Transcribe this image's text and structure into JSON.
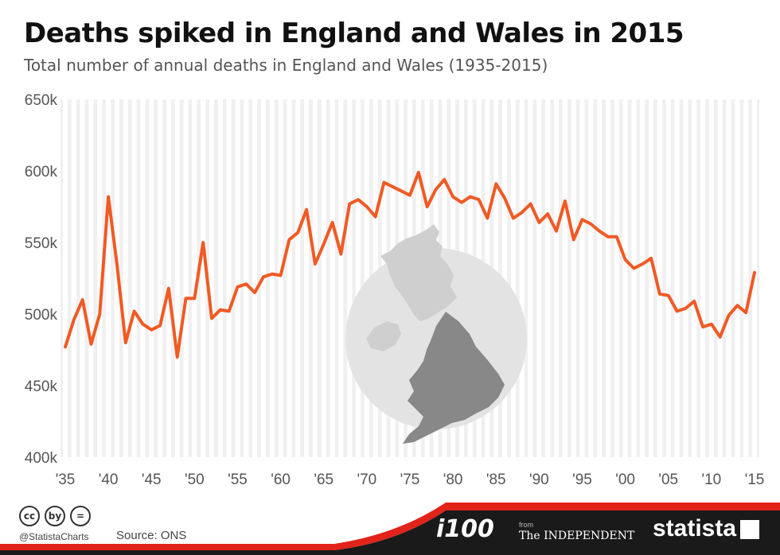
{
  "title": "Deaths spiked in England and Wales in 2015",
  "subtitle": "Total number of annual deaths in England and Wales (1935-2015)",
  "chart_data": {
    "type": "line",
    "title": "Deaths spiked in England and Wales in 2015",
    "subtitle": "Total number of annual deaths in England and Wales (1935-2015)",
    "ylim": [
      400000,
      650000
    ],
    "xlim": [
      1935,
      2015
    ],
    "y_ticks": [
      400000,
      450000,
      500000,
      550000,
      600000,
      650000
    ],
    "y_tick_labels": [
      "400k",
      "450k",
      "500k",
      "550k",
      "600k",
      "650k"
    ],
    "x_ticks": [
      1935,
      1940,
      1945,
      1950,
      1955,
      1960,
      1965,
      1970,
      1975,
      1980,
      1985,
      1990,
      1995,
      2000,
      2005,
      2010,
      2015
    ],
    "x_tick_labels": [
      "'35",
      "'40",
      "'45",
      "'50",
      "'55",
      "'60",
      "'65",
      "'70",
      "'75",
      "'80",
      "'85",
      "'90",
      "'95",
      "'00",
      "'05",
      "'10",
      "'15"
    ],
    "grid": "vertical stripes",
    "line_color": "#f05a24",
    "series": [
      {
        "x": [
          1935,
          1936,
          1937,
          1938,
          1939,
          1940,
          1941,
          1942,
          1943,
          1944,
          1945,
          1946,
          1947,
          1948,
          1949,
          1950,
          1951,
          1952,
          1953,
          1954,
          1955,
          1956,
          1957,
          1958,
          1959,
          1960,
          1961,
          1962,
          1963,
          1964,
          1965,
          1966,
          1967,
          1968,
          1969,
          1970,
          1971,
          1972,
          1973,
          1974,
          1975,
          1976,
          1977,
          1978,
          1979,
          1980,
          1981,
          1982,
          1983,
          1984,
          1985,
          1986,
          1987,
          1988,
          1989,
          1990,
          1991,
          1992,
          1993,
          1994,
          1995,
          1996,
          1997,
          1998,
          1999,
          2000,
          2001,
          2002,
          2003,
          2004,
          2005,
          2006,
          2007,
          2008,
          2009,
          2010,
          2011,
          2012,
          2013,
          2014,
          2015
        ],
        "values": [
          477000,
          496000,
          510000,
          479000,
          500000,
          582000,
          535000,
          480000,
          502000,
          493000,
          489000,
          492000,
          518000,
          470000,
          511000,
          511000,
          550000,
          497000,
          503000,
          502000,
          519000,
          521000,
          515000,
          526000,
          528000,
          527000,
          552000,
          557000,
          573000,
          535000,
          549000,
          564000,
          542000,
          577000,
          580000,
          575000,
          568000,
          592000,
          589000,
          586000,
          583000,
          599000,
          575000,
          587000,
          594000,
          582000,
          578000,
          582000,
          580000,
          567000,
          591000,
          581000,
          567000,
          571000,
          577000,
          564000,
          570000,
          558000,
          579000,
          552000,
          566000,
          563000,
          558000,
          554000,
          554000,
          538000,
          532000,
          535000,
          539000,
          514000,
          513000,
          502000,
          504000,
          509000,
          491000,
          493000,
          484000,
          499000,
          506000,
          501000,
          529000
        ]
      }
    ]
  },
  "footer": {
    "cc_icons": [
      "cc",
      "by",
      "="
    ],
    "handle": "@StatistaCharts",
    "source": "Source: ONS",
    "logo_i100": "i100",
    "logo_from": "from",
    "logo_independent": "The INDEPENDENT",
    "logo_statista": "statista",
    "band_color": "#1a1a1a",
    "accent_color": "#e2231a"
  }
}
